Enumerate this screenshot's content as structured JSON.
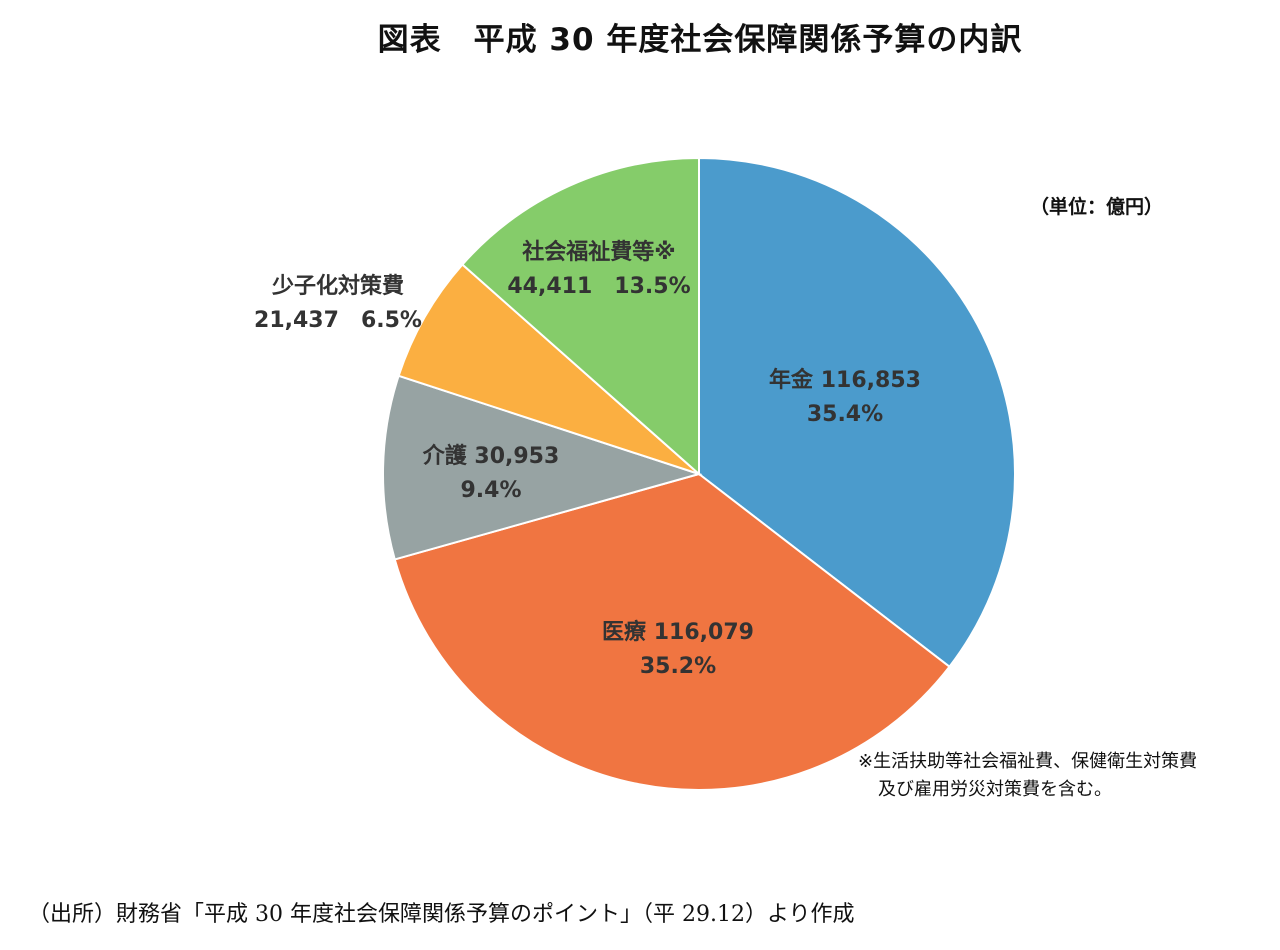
{
  "title": "図表　平成 30 年度社会保障関係予算の内訳",
  "unit_label": "（単位：億円）",
  "note": {
    "line1": "※生活扶助等社会福祉費、保健衛生対策費",
    "line2": "及び雇用労災対策費を含む。"
  },
  "source": "（出所）財務省「平成 30 年度社会保障関係予算のポイント」（平 29.12）より作成",
  "chart_data": {
    "type": "pie",
    "title": "図表　平成 30 年度社会保障関係予算の内訳",
    "unit": "（単位：億円）",
    "start_angle_deg": 0,
    "direction": "clockwise",
    "slices": [
      {
        "label": "年金",
        "value": 116853,
        "value_text": "116,853",
        "percent_text": "35.4%",
        "color": "#4B9BCC"
      },
      {
        "label": "医療",
        "value": 116079,
        "value_text": "116,079",
        "percent_text": "35.2%",
        "color": "#F07541"
      },
      {
        "label": "介護",
        "value": 30953,
        "value_text": "30,953",
        "percent_text": "9.4%",
        "color": "#97A3A3"
      },
      {
        "label": "少子化対策費",
        "value": 21437,
        "value_text": "21,437",
        "percent_text": "6.5%",
        "color": "#FBAF41"
      },
      {
        "label": "社会福祉費等※",
        "value": 44411,
        "value_text": "44,411",
        "percent_text": "13.5%",
        "color": "#85CC6A"
      }
    ]
  }
}
